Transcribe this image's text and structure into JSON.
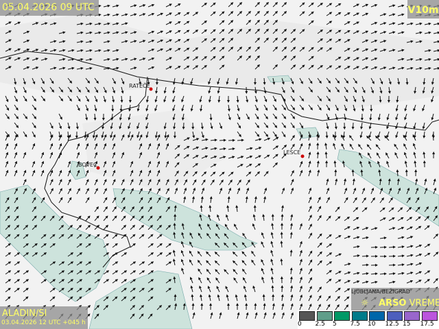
{
  "header": {
    "valid_time": "05.04.2026 09 UTC",
    "parameter": "V10m"
  },
  "footer": {
    "model": "ALADIN/SI",
    "run": "03.04.2026 12 UTC +045 h"
  },
  "brand": {
    "arso": "ARSO",
    "vreme": "VREME"
  },
  "places": [
    {
      "name": "RATEČE"
    },
    {
      "name": "BOVEC"
    },
    {
      "name": "LESCE"
    },
    {
      "name": "LJUBLJANA/BEŽIGRAD"
    }
  ],
  "legend": {
    "ticks": [
      "0",
      "2.5",
      "5",
      "7.5",
      "10",
      "12.5",
      "15",
      "17.5"
    ],
    "colors": [
      "#555555",
      "#5f9e8a",
      "#009966",
      "#007b8a",
      "#0066aa",
      "#4d5fbd",
      "#9966cc",
      "#bb55dd"
    ]
  },
  "colors": {
    "calm_area": "#cde3dc",
    "label_text": "#ffff66"
  }
}
